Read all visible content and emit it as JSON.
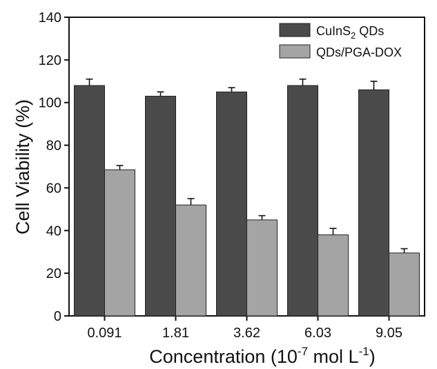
{
  "chart_data": {
    "type": "bar",
    "categories": [
      "0.091",
      "1.81",
      "3.62",
      "6.03",
      "9.05"
    ],
    "series": [
      {
        "name": "CuInS2 QDs",
        "name_parts": [
          "CuInS",
          "2",
          " QDs"
        ],
        "values": [
          108,
          103,
          105,
          108,
          106
        ],
        "errors": [
          3,
          2,
          2,
          3,
          4
        ],
        "color": "#4a4a4a"
      },
      {
        "name": "QDs/PGA-DOX",
        "values": [
          68.5,
          52,
          45,
          38,
          29.5
        ],
        "errors": [
          2,
          3,
          2,
          3,
          2
        ],
        "color": "#a4a4a4"
      }
    ],
    "xlabel": "Concentration (10-7 mol L-1)",
    "xlabel_parts": {
      "prefix": "Concentration (10",
      "sup1": "-7",
      "middle": " mol L",
      "sup2": "-1",
      "suffix": ")"
    },
    "ylabel": "Cell Viability (%)",
    "ylim": [
      0,
      140
    ],
    "yticks": [
      0,
      20,
      40,
      60,
      80,
      100,
      120,
      140
    ],
    "grid": false,
    "legend_position": "top-right"
  }
}
